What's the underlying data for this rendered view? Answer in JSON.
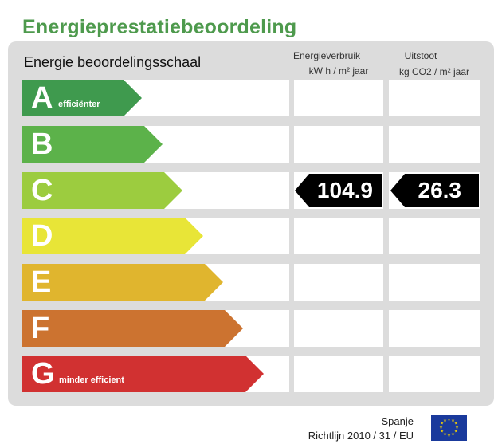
{
  "title": "Energieprestatiebeoordeling",
  "scale_heading": "Energie beoordelingsschaal",
  "columns": {
    "energy": {
      "line1": "Energieverbruik",
      "line2": "kW h / m² jaar"
    },
    "emission": {
      "line1": "Uitstoot",
      "line2": "kg CO2 / m² jaar"
    }
  },
  "ratings": [
    {
      "letter": "A",
      "label": "efficiënter",
      "color": "#3f9a4e"
    },
    {
      "letter": "B",
      "label": "",
      "color": "#5cb24a"
    },
    {
      "letter": "C",
      "label": "",
      "color": "#9ccc3f"
    },
    {
      "letter": "D",
      "label": "",
      "color": "#e8e537"
    },
    {
      "letter": "E",
      "label": "",
      "color": "#e0b52e"
    },
    {
      "letter": "F",
      "label": "",
      "color": "#cc7330"
    },
    {
      "letter": "G",
      "label": "minder efficient",
      "color": "#d13131"
    }
  ],
  "current": {
    "rating": "C",
    "energy_value": "104.9",
    "emission_value": "26.3"
  },
  "footer": {
    "country": "Spanje",
    "directive": "Richtlijn 2010 / 31 / EU"
  },
  "eu_flag_icon": "eu-flag-icon"
}
